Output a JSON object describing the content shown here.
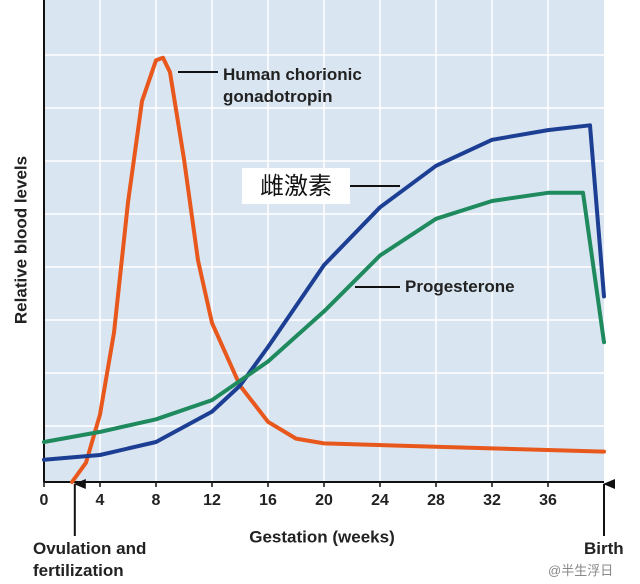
{
  "chart_data": {
    "type": "line",
    "x_label": "Gestation (weeks)",
    "y_label": "Relative blood levels",
    "xlim": [
      0,
      40
    ],
    "ylim": [
      0,
      100
    ],
    "xticks": [
      0,
      4,
      8,
      12,
      16,
      20,
      24,
      28,
      32,
      36
    ],
    "grid": true,
    "series": [
      {
        "name": "Human chorionic gonadotropin",
        "color": "#e8571c",
        "x": [
          2,
          3,
          4,
          5,
          6,
          7,
          8,
          8.5,
          9,
          10,
          11,
          12,
          14,
          16,
          18,
          20,
          28,
          40
        ],
        "values": [
          0,
          4,
          14,
          31,
          58,
          79,
          87.5,
          88,
          85,
          67,
          46,
          33,
          20,
          12.5,
          9,
          8,
          7.3,
          6.3
        ]
      },
      {
        "name": "雌激素",
        "color": "#1c3f94",
        "x": [
          0,
          4,
          8,
          12,
          14,
          16,
          20,
          24,
          28,
          32,
          36,
          39,
          40
        ],
        "values": [
          4.6,
          5.6,
          8.3,
          14.6,
          20,
          28,
          45,
          57,
          65.6,
          71,
          73,
          74,
          38.5
        ]
      },
      {
        "name": "Progesterone",
        "color": "#1e8a5e",
        "x": [
          0,
          4,
          8,
          12,
          16,
          20,
          24,
          28,
          32,
          36,
          38.5,
          40
        ],
        "values": [
          8.3,
          10.4,
          13,
          17,
          25,
          35.4,
          47,
          54.6,
          58.3,
          60,
          60,
          29
        ]
      }
    ],
    "annotations": [
      {
        "text": "Ovulation and fertilization",
        "x": 2.2
      },
      {
        "text": "Birth",
        "x": 40
      }
    ],
    "watermark": "@半生浮日"
  }
}
